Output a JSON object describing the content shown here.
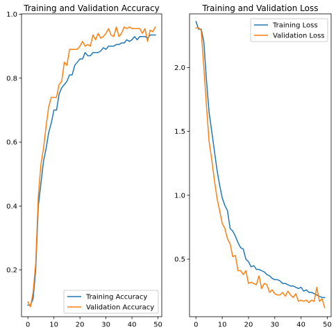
{
  "chart_data": [
    {
      "type": "line",
      "title": "Training and Validation Accuracy",
      "xlabel": "",
      "ylabel": "",
      "xlim": [
        -2.45,
        51.45
      ],
      "ylim": [
        0.054,
        1.001
      ],
      "xticks": [
        0,
        10,
        20,
        30,
        40,
        50
      ],
      "yticks": [
        0.2,
        0.4,
        0.6,
        0.8,
        1.0
      ],
      "xtick_labels": [
        "0",
        "10",
        "20",
        "30",
        "40",
        "50"
      ],
      "ytick_labels": [
        "0.2",
        "0.4",
        "0.6",
        "0.8",
        "1.0"
      ],
      "grid": false,
      "legend_position": "lower-right",
      "x": [
        0,
        1,
        2,
        3,
        4,
        5,
        6,
        7,
        8,
        9,
        10,
        11,
        12,
        13,
        14,
        15,
        16,
        17,
        18,
        19,
        20,
        21,
        22,
        23,
        24,
        25,
        26,
        27,
        28,
        29,
        30,
        31,
        32,
        33,
        34,
        35,
        36,
        37,
        38,
        39,
        40,
        41,
        42,
        43,
        44,
        45,
        46,
        47,
        48,
        49
      ],
      "series": [
        {
          "name": "Training Accuracy",
          "color": "#1f77b4",
          "values": [
            0.09,
            0.09,
            0.11,
            0.2,
            0.4,
            0.47,
            0.54,
            0.58,
            0.63,
            0.66,
            0.7,
            0.7,
            0.75,
            0.77,
            0.78,
            0.79,
            0.81,
            0.81,
            0.84,
            0.85,
            0.86,
            0.86,
            0.88,
            0.87,
            0.87,
            0.88,
            0.88,
            0.88,
            0.885,
            0.895,
            0.89,
            0.9,
            0.9,
            0.9,
            0.905,
            0.905,
            0.91,
            0.91,
            0.92,
            0.915,
            0.92,
            0.93,
            0.92,
            0.93,
            0.93,
            0.93,
            0.925,
            0.935,
            0.935,
            0.935
          ]
        },
        {
          "name": "Validation Accuracy",
          "color": "#ff7f0e",
          "values": [
            0.1,
            0.085,
            0.13,
            0.22,
            0.43,
            0.53,
            0.58,
            0.65,
            0.71,
            0.74,
            0.74,
            0.74,
            0.78,
            0.79,
            0.85,
            0.84,
            0.89,
            0.89,
            0.89,
            0.89,
            0.9,
            0.915,
            0.9,
            0.905,
            0.9,
            0.935,
            0.92,
            0.94,
            0.925,
            0.93,
            0.94,
            0.955,
            0.935,
            0.93,
            0.96,
            0.93,
            0.94,
            0.96,
            0.955,
            0.96,
            0.955,
            0.955,
            0.955,
            0.955,
            0.94,
            0.955,
            0.915,
            0.95,
            0.945,
            0.96
          ]
        }
      ]
    },
    {
      "type": "line",
      "title": "Training and Validation Loss",
      "xlabel": "",
      "ylabel": "",
      "xlim": [
        -2.45,
        51.45
      ],
      "ylim": [
        0.05,
        2.42
      ],
      "xticks": [
        0,
        10,
        20,
        30,
        40,
        50
      ],
      "yticks": [
        0.5,
        1.0,
        1.5,
        2.0
      ],
      "xtick_labels": [
        "0",
        "10",
        "20",
        "30",
        "40",
        "50"
      ],
      "ytick_labels": [
        "0.5",
        "1.0",
        "1.5",
        "2.0"
      ],
      "grid": false,
      "legend_position": "upper-right",
      "x": [
        0,
        1,
        2,
        3,
        4,
        5,
        6,
        7,
        8,
        9,
        10,
        11,
        12,
        13,
        14,
        15,
        16,
        17,
        18,
        19,
        20,
        21,
        22,
        23,
        24,
        25,
        26,
        27,
        28,
        29,
        30,
        31,
        32,
        33,
        34,
        35,
        36,
        37,
        38,
        39,
        40,
        41,
        42,
        43,
        44,
        45,
        46,
        47,
        48,
        49
      ],
      "series": [
        {
          "name": "Training Loss",
          "color": "#1f77b4",
          "values": [
            2.36,
            2.3,
            2.3,
            2.2,
            1.9,
            1.65,
            1.5,
            1.35,
            1.2,
            1.08,
            0.98,
            0.92,
            0.88,
            0.74,
            0.72,
            0.68,
            0.63,
            0.59,
            0.58,
            0.5,
            0.48,
            0.44,
            0.45,
            0.42,
            0.42,
            0.41,
            0.4,
            0.38,
            0.37,
            0.35,
            0.34,
            0.34,
            0.33,
            0.31,
            0.31,
            0.3,
            0.29,
            0.29,
            0.28,
            0.27,
            0.28,
            0.25,
            0.26,
            0.24,
            0.24,
            0.23,
            0.22,
            0.21,
            0.2,
            0.2
          ]
        },
        {
          "name": "Validation Loss",
          "color": "#ff7f0e",
          "values": [
            2.31,
            2.31,
            2.29,
            2.0,
            1.7,
            1.42,
            1.28,
            1.12,
            0.98,
            0.88,
            0.78,
            0.74,
            0.66,
            0.62,
            0.52,
            0.53,
            0.41,
            0.41,
            0.38,
            0.41,
            0.31,
            0.32,
            0.31,
            0.3,
            0.37,
            0.27,
            0.31,
            0.3,
            0.24,
            0.26,
            0.23,
            0.22,
            0.22,
            0.24,
            0.21,
            0.25,
            0.22,
            0.2,
            0.23,
            0.17,
            0.18,
            0.17,
            0.18,
            0.16,
            0.18,
            0.17,
            0.28,
            0.17,
            0.19,
            0.12
          ]
        }
      ]
    }
  ]
}
